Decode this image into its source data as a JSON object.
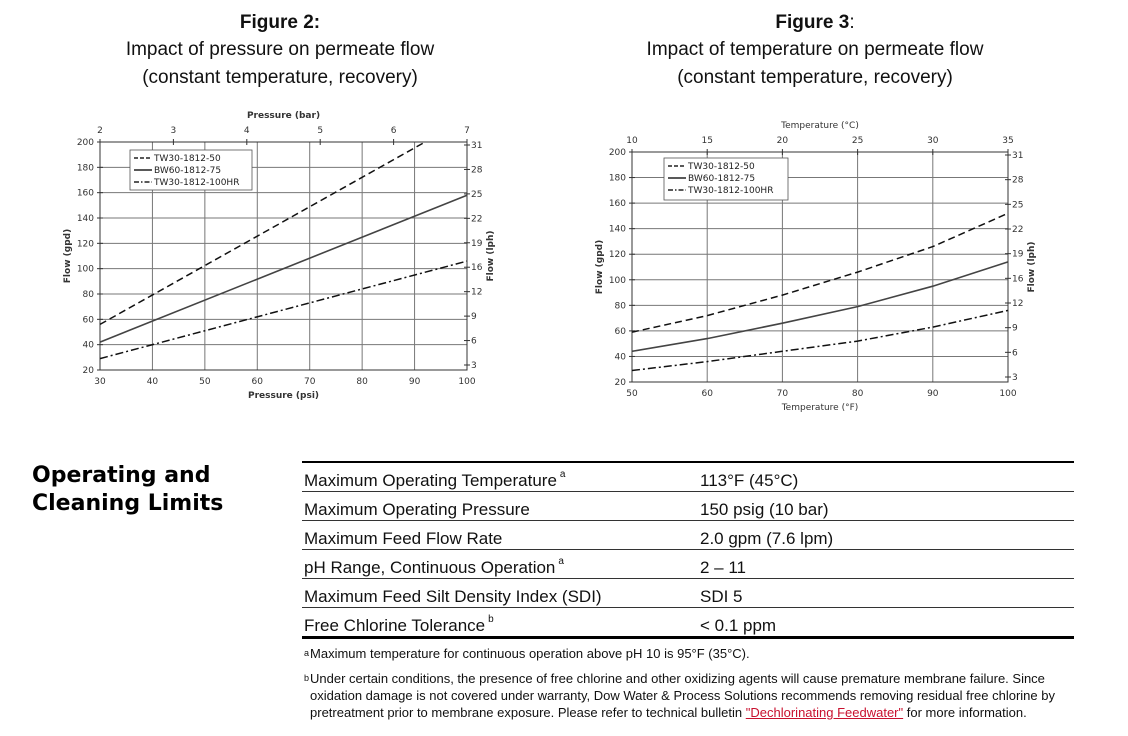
{
  "figure2": {
    "label": "Figure 2:",
    "subtitle_line1": "Impact of pressure on permeate flow",
    "subtitle_line2": "(constant temperature, recovery)"
  },
  "figure3": {
    "label": "Figure 3",
    "label_suffix": ":",
    "subtitle_line1": "Impact of temperature on permeate flow",
    "subtitle_line2": "(constant temperature, recovery)"
  },
  "chart_data": [
    {
      "type": "line",
      "xlabel": "Pressure (psi)",
      "x2label": "Pressure (bar)",
      "ylabel": "Flow (gpd)",
      "y2label": "Flow (lph)",
      "xlim": [
        30,
        100
      ],
      "ylim": [
        20,
        200
      ],
      "x_ticks": [
        30,
        40,
        50,
        60,
        70,
        80,
        90,
        100
      ],
      "y_ticks": [
        20,
        40,
        60,
        80,
        100,
        120,
        140,
        160,
        180,
        200
      ],
      "x2_ticks": [
        2,
        3,
        4,
        5,
        6,
        7
      ],
      "y2_ticks": [
        3,
        6,
        9,
        12,
        16,
        19,
        22,
        25,
        28,
        31
      ],
      "legend_position": "top-left",
      "grid": true,
      "series": [
        {
          "name": "TW30-1812-50",
          "style": "dashed",
          "x": [
            30,
            92
          ],
          "y": [
            56,
            200
          ]
        },
        {
          "name": "BW60-1812-75",
          "style": "solid",
          "x": [
            30,
            100
          ],
          "y": [
            42,
            158
          ]
        },
        {
          "name": "TW30-1812-100HR",
          "style": "dashdot",
          "x": [
            30,
            100
          ],
          "y": [
            29,
            106
          ]
        }
      ]
    },
    {
      "type": "line",
      "xlabel": "Temperature (°F)",
      "x2label": "Temperature (°C)",
      "ylabel": "Flow (gpd)",
      "y2label": "Flow (lph)",
      "xlim": [
        50,
        100
      ],
      "ylim": [
        20,
        200
      ],
      "x_ticks": [
        50,
        60,
        70,
        80,
        90,
        100
      ],
      "y_ticks": [
        20,
        40,
        60,
        80,
        100,
        120,
        140,
        160,
        180,
        200
      ],
      "x2_ticks": [
        10,
        15,
        20,
        25,
        30,
        35
      ],
      "y2_ticks": [
        3,
        6,
        9,
        12,
        16,
        19,
        22,
        25,
        28,
        31
      ],
      "legend_position": "top-left",
      "grid": true,
      "series": [
        {
          "name": "TW30-1812-50",
          "style": "dashed",
          "x": [
            50,
            60,
            70,
            80,
            90,
            100
          ],
          "y": [
            59,
            72,
            88,
            106,
            126,
            152
          ]
        },
        {
          "name": "BW60-1812-75",
          "style": "solid",
          "x": [
            50,
            60,
            70,
            80,
            90,
            100
          ],
          "y": [
            44,
            54,
            66,
            79,
            95,
            114
          ]
        },
        {
          "name": "TW30-1812-100HR",
          "style": "dashdot",
          "x": [
            50,
            60,
            70,
            80,
            90,
            100
          ],
          "y": [
            29,
            36,
            44,
            52,
            63,
            76
          ]
        }
      ]
    }
  ],
  "limits_section": {
    "heading_line1": "Operating and",
    "heading_line2": "Cleaning Limits",
    "rows": [
      {
        "label": "Maximum Operating Temperature",
        "note": "a",
        "value": "113°F (45°C)"
      },
      {
        "label": "Maximum Operating Pressure",
        "note": "",
        "value": "150 psig (10 bar)"
      },
      {
        "label": "Maximum Feed Flow Rate",
        "note": "",
        "value": "2.0 gpm (7.6 lpm)"
      },
      {
        "label": "pH Range, Continuous Operation",
        "note": "a",
        "value": "2 – 11"
      },
      {
        "label": "Maximum Feed Silt Density Index (SDI)",
        "note": "",
        "value": "SDI 5"
      },
      {
        "label": "Free Chlorine Tolerance",
        "note": "b",
        "value": "< 0.1 ppm"
      }
    ]
  },
  "footnotes": {
    "a_mark": "a",
    "a_text": "Maximum temperature for continuous operation above pH 10 is 95°F (35°C).",
    "b_mark": "b",
    "b_text": "Under certain conditions, the presence of free chlorine and other oxidizing agents will cause premature membrane failure. Since oxidation damage is not covered under warranty, Dow Water & Process Solutions recommends removing residual free chlorine by pretreatment prior to membrane exposure. Please refer to technical bulletin",
    "b_link": "\"Dechlorinating Feedwater\"",
    "b_tail": "for more information."
  }
}
